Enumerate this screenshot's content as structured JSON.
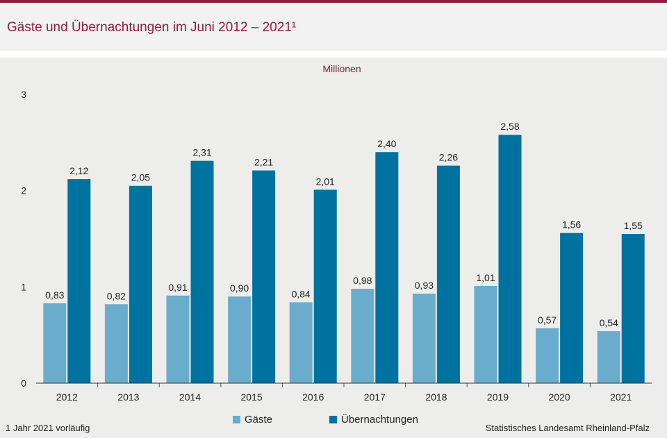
{
  "header": {
    "title": "Gäste und Übernachtungen im Juni 2012 – 2021¹"
  },
  "footer": {
    "footnote": "1 Jahr 2021 vorläufig",
    "source": "Statistisches Landesamt Rheinland-Pfalz"
  },
  "colors": {
    "brand": "#8a1e3c",
    "gaeste": "#6aaccb",
    "uebernachtungen": "#0072a0"
  },
  "chart_data": {
    "type": "bar",
    "unit_label": "Millionen",
    "categories": [
      "2012",
      "2013",
      "2014",
      "2015",
      "2016",
      "2017",
      "2018",
      "2019",
      "2020",
      "2021"
    ],
    "series": [
      {
        "name": "Gäste",
        "values": [
          0.83,
          0.82,
          0.91,
          0.9,
          0.84,
          0.98,
          0.93,
          1.01,
          0.57,
          0.54
        ],
        "labels": [
          "0,83",
          "0,82",
          "0,91",
          "0,90",
          "0,84",
          "0,98",
          "0,93",
          "1,01",
          "0,57",
          "0,54"
        ]
      },
      {
        "name": "Übernachtungen",
        "values": [
          2.12,
          2.05,
          2.31,
          2.21,
          2.01,
          2.4,
          2.26,
          2.58,
          1.56,
          1.55
        ],
        "labels": [
          "2,12",
          "2,05",
          "2,31",
          "2,21",
          "2,01",
          "2,40",
          "2,26",
          "2,58",
          "1,56",
          "1,55"
        ]
      }
    ],
    "ylim": [
      0,
      3
    ],
    "yticks": [
      "0",
      "1",
      "2",
      "3"
    ],
    "grid": false,
    "legend": "bottom-center"
  }
}
